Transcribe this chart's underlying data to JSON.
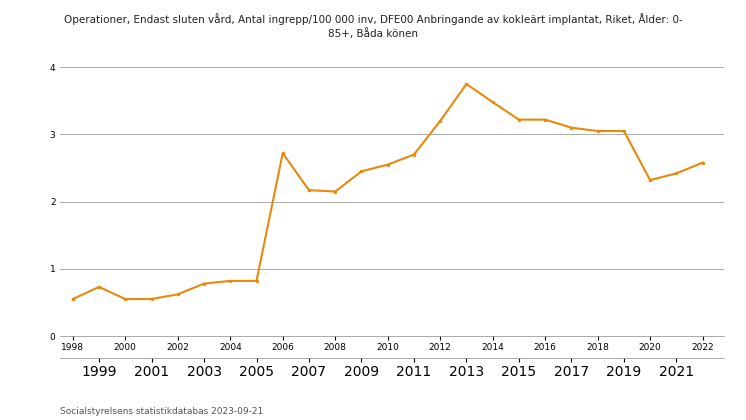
{
  "title": "Operationer, Endast sluten vård, Antal ingrepp/100 000 inv, DFE00 Anbringande av kokleärt implantat, Riket, Ålder: 0-\n85+, Båda könen",
  "source": "Socialstyrelsens statistikdatabas 2023-09-21",
  "line_color": "#E8890C",
  "background_color": "#ffffff",
  "grid_color": "#aaaaaa",
  "years": [
    1998,
    1999,
    2000,
    2001,
    2002,
    2003,
    2004,
    2005,
    2006,
    2007,
    2008,
    2009,
    2010,
    2011,
    2012,
    2013,
    2014,
    2015,
    2016,
    2017,
    2018,
    2019,
    2020,
    2021,
    2022
  ],
  "values": [
    0.55,
    0.73,
    0.55,
    0.55,
    0.62,
    0.78,
    0.82,
    0.82,
    2.72,
    2.17,
    2.15,
    2.45,
    2.55,
    2.7,
    3.2,
    3.75,
    3.48,
    3.22,
    3.22,
    3.1,
    3.05,
    3.05,
    2.32,
    2.42,
    2.58
  ],
  "ylim": [
    0,
    4
  ],
  "yticks": [
    0,
    1,
    2,
    3,
    4
  ],
  "even_years": [
    1998,
    2000,
    2002,
    2004,
    2006,
    2008,
    2010,
    2012,
    2014,
    2016,
    2018,
    2020,
    2022
  ],
  "odd_years": [
    1999,
    2001,
    2003,
    2005,
    2007,
    2009,
    2011,
    2013,
    2015,
    2017,
    2019,
    2021
  ],
  "title_fontsize": 7.5,
  "source_fontsize": 6.5,
  "tick_fontsize": 6.5
}
